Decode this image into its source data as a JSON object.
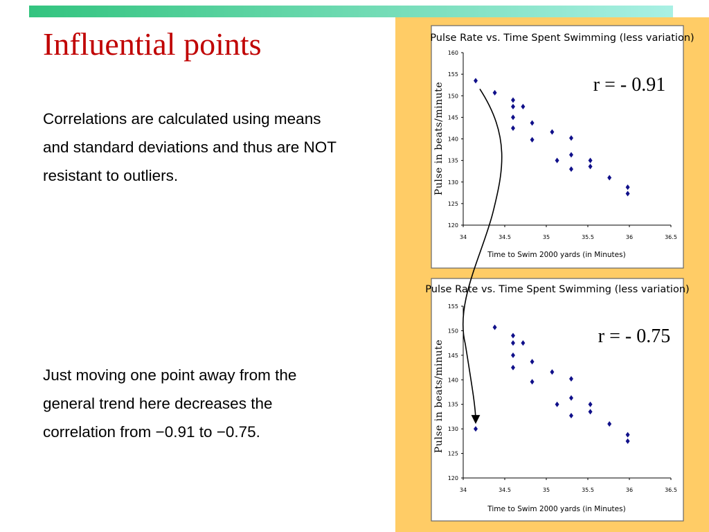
{
  "slide": {
    "title": "Influential points",
    "paragraph_1": "Correlations are calculated using means and standard deviations and thus are NOT resistant to outliers.",
    "paragraph_2": "Just moving one point away from the general trend here decreases the correlation from −0.91 to −0.75."
  },
  "colors": {
    "title": "#c00000",
    "bar_start": "#33c47f",
    "bar_end": "#a9f0e4",
    "panel": "#ffcc66",
    "point": "#10108a"
  },
  "chart_data": [
    {
      "type": "scatter",
      "title": "Pulse Rate vs. Time Spent Swimming (less variation)",
      "xlabel": "Time to Swim 2000 yards (in Minutes)",
      "ylabel": "Pulse in beats/minute",
      "annotation": "r = - 0.91",
      "xlim": [
        34,
        36.5
      ],
      "ylim": [
        120,
        160
      ],
      "xticks": [
        "34",
        "34.5",
        "35",
        "35.5",
        "36",
        "36.5"
      ],
      "yticks": [
        "120",
        "125",
        "130",
        "135",
        "140",
        "145",
        "150",
        "155",
        "160"
      ],
      "grid": false,
      "x": [
        34.15,
        34.38,
        34.6,
        34.6,
        34.6,
        34.6,
        34.72,
        34.83,
        34.83,
        35.07,
        35.13,
        35.3,
        35.3,
        35.3,
        35.53,
        35.53,
        35.76,
        35.98,
        35.98
      ],
      "y": [
        153.5,
        150.7,
        149,
        147.5,
        145,
        142.5,
        147.5,
        143.7,
        139.8,
        141.6,
        135,
        140.2,
        136.3,
        133,
        135,
        133.6,
        131,
        128.8,
        127.3
      ]
    },
    {
      "type": "scatter",
      "title": "Pulse Rate vs. Time Spent Swimming (less variation)",
      "xlabel": "Time to Swim 2000 yards (in Minutes)",
      "ylabel": "Pulse in beats/minute",
      "annotation": "r = - 0.75",
      "xlim": [
        34,
        36.5
      ],
      "ylim": [
        120,
        155
      ],
      "xticks": [
        "34",
        "34.5",
        "35",
        "35.5",
        "36",
        "36.5"
      ],
      "yticks": [
        "120",
        "125",
        "130",
        "135",
        "140",
        "145",
        "150",
        "155"
      ],
      "grid": false,
      "x": [
        34.15,
        34.38,
        34.6,
        34.6,
        34.6,
        34.6,
        34.72,
        34.83,
        34.83,
        35.07,
        35.13,
        35.3,
        35.3,
        35.3,
        35.53,
        35.53,
        35.76,
        35.98,
        35.98
      ],
      "y": [
        130,
        150.7,
        149,
        147.5,
        145,
        142.5,
        147.5,
        143.7,
        139.6,
        141.6,
        135,
        140.2,
        136.3,
        132.7,
        135,
        133.5,
        131,
        128.8,
        127.5
      ]
    }
  ]
}
